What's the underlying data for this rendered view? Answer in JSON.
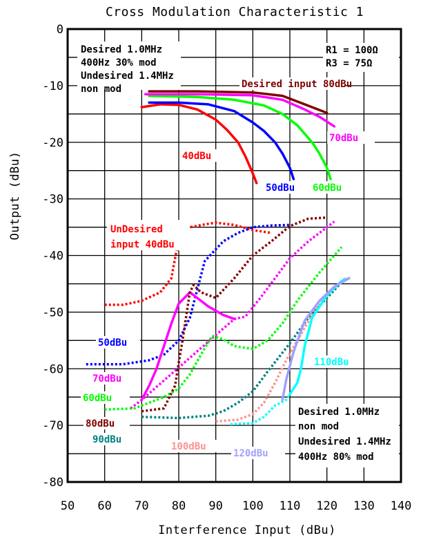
{
  "chart_data": {
    "type": "line",
    "title": "Cross Modulation Characteristic 1",
    "xlabel": "Interference Input (dBu)",
    "ylabel": "Output (dBu)",
    "xlim": [
      50,
      140
    ],
    "ylim": [
      -80,
      0
    ],
    "x_ticks": [
      50,
      60,
      70,
      80,
      90,
      100,
      110,
      120,
      130,
      140
    ],
    "y_ticks": [
      0,
      -10,
      -20,
      -30,
      -40,
      -50,
      -60,
      -70,
      -80
    ],
    "grid": true,
    "notes": {
      "desired_top": [
        "Desired 1.0MHz",
        "400Hz 30% mod",
        "Undesired 1.4MHz",
        "non mod"
      ],
      "resistors": [
        "R1 = 100Ω",
        "R3 = 75Ω"
      ],
      "desired_bottom": [
        "Desired 1.0MHz",
        "non mod",
        "Undesired 1.4MHz",
        "400Hz 80% mod"
      ]
    },
    "group_labels": {
      "desired": "Desired input 80dBu",
      "undesired": [
        "UnDesired",
        "input 40dBu"
      ]
    },
    "series": [
      {
        "name": "40dBu",
        "group": "desired",
        "dash": "solid",
        "color": "#ff0000",
        "x": [
          70,
          75,
          80,
          85,
          90,
          93,
          96,
          98,
          100,
          101
        ],
        "y": [
          -13.8,
          -13.3,
          -13.4,
          -14.2,
          -16.0,
          -17.8,
          -20.0,
          -22.5,
          -25.5,
          -27.2
        ]
      },
      {
        "name": "50dBu",
        "group": "desired",
        "dash": "solid",
        "color": "#0000ff",
        "x": [
          72,
          80,
          88,
          95,
          100,
          103,
          106,
          108,
          110,
          111
        ],
        "y": [
          -13.0,
          -13.0,
          -13.3,
          -14.5,
          -16.5,
          -18.0,
          -20.0,
          -22.0,
          -24.5,
          -26.5
        ]
      },
      {
        "name": "60dBu",
        "group": "desired",
        "dash": "solid",
        "color": "#00ff00",
        "x": [
          72,
          85,
          95,
          103,
          108,
          112,
          116,
          118,
          120,
          121
        ],
        "y": [
          -11.8,
          -12.0,
          -12.5,
          -13.5,
          -15.0,
          -17.0,
          -20.0,
          -22.0,
          -24.5,
          -26.5
        ]
      },
      {
        "name": "70dBu",
        "group": "desired",
        "dash": "solid",
        "color": "#ff00ff",
        "x": [
          71,
          85,
          100,
          108,
          114,
          118,
          122
        ],
        "y": [
          -11.5,
          -11.5,
          -11.7,
          -12.5,
          -14.2,
          -15.5,
          -17.2
        ]
      },
      {
        "name": "80dBu",
        "group": "desired",
        "dash": "solid",
        "color": "#800000",
        "x": [
          72,
          85,
          100,
          108,
          112,
          116,
          120
        ],
        "y": [
          -11.0,
          -11.0,
          -11.2,
          -11.8,
          -12.8,
          -13.8,
          -14.8
        ]
      },
      {
        "name": "UnDesired input 40dBu",
        "group": "undesired",
        "dash": "dotted",
        "color": "#ff0000",
        "x": [
          60,
          65,
          70,
          75,
          78,
          80,
          83,
          87,
          90,
          95,
          100,
          105
        ],
        "y": [
          -48.7,
          -48.7,
          -48.0,
          -46.5,
          -44.0,
          -37.0,
          -35.0,
          -34.5,
          -34.2,
          -34.6,
          -35.5,
          -36.0
        ]
      },
      {
        "name": "50dBu",
        "group": "undesired",
        "dash": "dotted",
        "color": "#0000ff",
        "x": [
          55,
          65,
          72,
          76,
          80,
          83,
          87,
          92,
          96,
          100,
          105,
          110
        ],
        "y": [
          -59.2,
          -59.2,
          -58.5,
          -57.5,
          -55.0,
          -51.0,
          -41.0,
          -37.5,
          -36.0,
          -35.0,
          -34.7,
          -34.6
        ]
      },
      {
        "name": "70dBu",
        "group": "undesired",
        "dash": "solid",
        "color": "#ff00ff",
        "x": [
          70,
          72,
          74,
          76,
          78,
          80,
          83,
          85,
          88,
          92,
          95
        ],
        "y": [
          -65.5,
          -63.0,
          -60.0,
          -56.0,
          -52.0,
          -48.5,
          -46.5,
          -47.5,
          -49.0,
          -50.5,
          -51.2
        ]
      },
      {
        "name": "70dBu",
        "group": "undesired",
        "dash": "dotted",
        "color": "#ff00ff",
        "x": [
          67,
          70,
          95,
          98,
          102,
          106,
          110,
          115,
          120,
          122
        ],
        "y": [
          -67.0,
          -65.5,
          -51.2,
          -50.8,
          -47.5,
          -44.0,
          -40.5,
          -37.5,
          -35.0,
          -34.0
        ]
      },
      {
        "name": "60dBu",
        "group": "undesired",
        "dash": "dotted",
        "color": "#00ff00",
        "x": [
          60,
          68,
          72,
          76,
          80,
          83,
          86,
          89,
          92,
          95,
          100,
          104,
          108,
          112,
          118,
          124
        ],
        "y": [
          -67.2,
          -67.0,
          -66.0,
          -65.0,
          -63.5,
          -61.0,
          -57.5,
          -54.2,
          -54.8,
          -56.0,
          -56.5,
          -55.0,
          -52.0,
          -48.0,
          -43.0,
          -38.5
        ]
      },
      {
        "name": "80dBu",
        "group": "undesired",
        "dash": "dotted",
        "color": "#800000",
        "x": [
          70,
          76,
          79,
          81,
          83,
          84,
          86,
          90,
          95,
          100,
          105,
          110,
          115,
          120
        ],
        "y": [
          -67.5,
          -67.0,
          -63.0,
          -55.0,
          -46.5,
          -45.2,
          -46.5,
          -47.5,
          -44.0,
          -40.0,
          -37.5,
          -34.8,
          -33.5,
          -33.3
        ]
      },
      {
        "name": "90dBu",
        "group": "undesired",
        "dash": "dotted",
        "color": "#008080",
        "x": [
          70,
          80,
          88,
          92,
          96,
          100,
          104,
          110,
          115,
          120,
          125
        ],
        "y": [
          -68.5,
          -68.7,
          -68.3,
          -67.5,
          -66.0,
          -64.0,
          -60.5,
          -55.5,
          -51.0,
          -47.5,
          -44.0
        ]
      },
      {
        "name": "100dBu",
        "group": "undesired",
        "dash": "dotted",
        "color": "#ff9090",
        "x": [
          90,
          96,
          100,
          103,
          106,
          109,
          112,
          116,
          120,
          125
        ],
        "y": [
          -69.3,
          -69.0,
          -68.0,
          -66.0,
          -62.5,
          -58.5,
          -55.0,
          -50.5,
          -47.0,
          -44.0
        ]
      },
      {
        "name": "110dBu",
        "group": "undesired",
        "dash": "solid",
        "color": "#00ffff",
        "x": [
          110,
          112,
          113,
          114,
          116,
          120,
          124,
          126
        ],
        "y": [
          -64.5,
          -62.5,
          -60.0,
          -56.0,
          -51.0,
          -47.0,
          -44.5,
          -44.0
        ]
      },
      {
        "name": "120dBu",
        "group": "undesired",
        "dash": "dotted",
        "color": "#00ffff",
        "x": [
          94,
          100,
          103,
          106,
          109,
          110
        ],
        "y": [
          -69.8,
          -69.6,
          -68.5,
          -66.5,
          -65.5,
          -64.5
        ]
      },
      {
        "name": "120dBu",
        "group": "undesired",
        "dash": "solid",
        "color": "#a0a0ff",
        "x": [
          108,
          109,
          111,
          114,
          118,
          122,
          126
        ],
        "y": [
          -65.5,
          -62.0,
          -57.0,
          -51.5,
          -48.0,
          -45.5,
          -44.0
        ]
      }
    ]
  }
}
